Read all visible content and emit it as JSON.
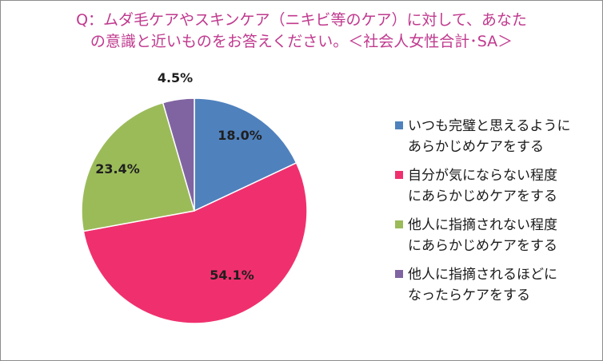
{
  "title": {
    "line1": "Q：ムダ毛ケアやスキンケア（ニキビ等のケア）に対して、あなた",
    "line2": "の意識と近いものをお答えください。＜社会人女性合計･SA＞"
  },
  "chart_data": {
    "type": "pie",
    "slices": [
      {
        "label_lines": [
          "いつも完璧と思えるように",
          "あらかじめケアをする"
        ],
        "value": 18.0,
        "display": "18.0%",
        "color": "#4f81bd"
      },
      {
        "label_lines": [
          "自分が気にならない程度",
          "にあらかじめケアをする"
        ],
        "value": 54.1,
        "display": "54.1%",
        "color": "#f0306e"
      },
      {
        "label_lines": [
          "他人に指摘されない程度",
          "にあらかじめケアをする"
        ],
        "value": 23.4,
        "display": "23.4%",
        "color": "#9bbb59"
      },
      {
        "label_lines": [
          "他人に指摘されるほどに",
          "なったらケアをする"
        ],
        "value": 4.5,
        "display": "4.5%",
        "color": "#8064a2"
      }
    ],
    "start_angle_deg": 0,
    "direction": "clockwise",
    "legend_position": "right"
  }
}
